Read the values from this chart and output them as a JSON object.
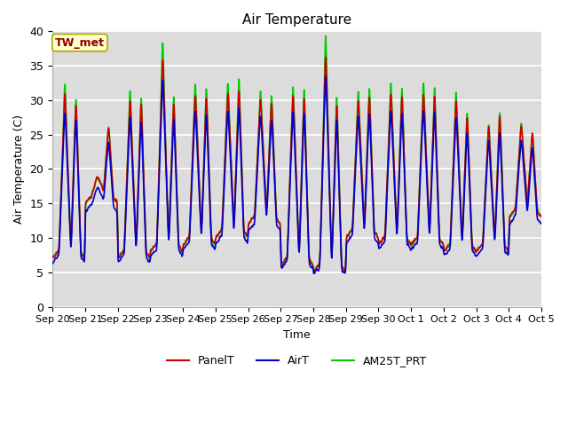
{
  "title": "Air Temperature",
  "xlabel": "Time",
  "ylabel": "Air Temperature (C)",
  "ylim": [
    0,
    40
  ],
  "annotation": "TW_met",
  "annotation_color": "#8B0000",
  "annotation_bg": "#FFFFCC",
  "annotation_border": "#AAAA00",
  "bg_color": "#DCDCDC",
  "fig_bg": "#FFFFFF",
  "grid_color": "#FFFFFF",
  "series": [
    {
      "label": "PanelT",
      "color": "#CC0000",
      "lw": 1.2
    },
    {
      "label": "AirT",
      "color": "#0000CC",
      "lw": 1.2
    },
    {
      "label": "AM25T_PRT",
      "color": "#00CC00",
      "lw": 1.2
    }
  ],
  "xtick_labels": [
    "Sep 20",
    "Sep 21",
    "Sep 22",
    "Sep 23",
    "Sep 24",
    "Sep 25",
    "Sep 26",
    "Sep 27",
    "Sep 28",
    "Sep 29",
    "Sep 30",
    "Oct 1",
    "Oct 2",
    "Oct 3",
    "Oct 4",
    "Oct 5"
  ],
  "ytick_labels": [
    0,
    5,
    10,
    15,
    20,
    25,
    30,
    35,
    40
  ],
  "n_days": 15,
  "samples_per_day": 144,
  "daily_peaks": [
    {
      "min": 7,
      "max1": 30,
      "max2": 29,
      "min2": 15
    },
    {
      "min": 15,
      "max1": 17,
      "max2": 25,
      "min2": 14
    },
    {
      "min": 7,
      "max1": 29,
      "max2": 29,
      "min2": 12
    },
    {
      "min": 8,
      "max1": 35,
      "max2": 29,
      "min2": 11
    },
    {
      "min": 9,
      "max1": 30,
      "max2": 30,
      "min2": 10
    },
    {
      "min": 10,
      "max1": 30,
      "max2": 31,
      "min2": 10
    },
    {
      "min": 12,
      "max1": 29,
      "max2": 29,
      "min2": 11
    },
    {
      "min": 6,
      "max1": 30,
      "max2": 30,
      "min2": 8
    },
    {
      "min": 5,
      "max1": 36,
      "max2": 29,
      "min2": 13
    },
    {
      "min": 10,
      "max1": 29,
      "max2": 30,
      "min2": 11
    },
    {
      "min": 9,
      "max1": 30,
      "max2": 30,
      "min2": 9
    },
    {
      "min": 9,
      "max1": 30,
      "max2": 30,
      "min2": 9
    },
    {
      "min": 8,
      "max1": 29,
      "max2": 27,
      "min2": 10
    },
    {
      "min": 8,
      "max1": 25,
      "max2": 27,
      "min2": 13
    },
    {
      "min": 13,
      "max1": 25,
      "max2": 24,
      "min2": 14
    }
  ]
}
